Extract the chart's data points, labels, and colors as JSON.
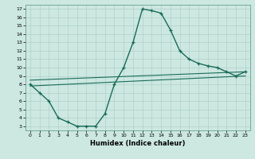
{
  "xlabel": "Humidex (Indice chaleur)",
  "bg_color": "#cce8e0",
  "line_color": "#1a6b5a",
  "grid_color": "#aaccc4",
  "xlim": [
    -0.5,
    23.5
  ],
  "ylim": [
    2.5,
    17.5
  ],
  "xticks": [
    0,
    1,
    2,
    3,
    4,
    5,
    6,
    7,
    8,
    9,
    10,
    11,
    12,
    13,
    14,
    15,
    16,
    17,
    18,
    19,
    20,
    21,
    22,
    23
  ],
  "yticks": [
    3,
    4,
    5,
    6,
    7,
    8,
    9,
    10,
    11,
    12,
    13,
    14,
    15,
    16,
    17
  ],
  "line1_x": [
    0,
    1,
    2,
    3,
    4,
    5,
    6,
    7,
    8,
    9,
    10,
    11,
    12,
    13,
    14,
    15,
    16,
    17,
    18,
    19,
    20,
    21,
    22,
    23
  ],
  "line1_y": [
    8,
    7,
    6,
    4,
    3.5,
    3,
    3,
    3,
    4.5,
    8,
    10,
    13,
    17,
    16.8,
    16.5,
    14.5,
    12,
    11,
    10.5,
    10.2,
    10,
    9.5,
    9,
    9.5
  ],
  "line2_x": [
    0,
    23
  ],
  "line2_y": [
    8.5,
    9.5
  ],
  "line3_x": [
    0,
    23
  ],
  "line3_y": [
    7.8,
    9.0
  ],
  "xlabel_fontsize": 6,
  "tick_fontsize": 4.5
}
